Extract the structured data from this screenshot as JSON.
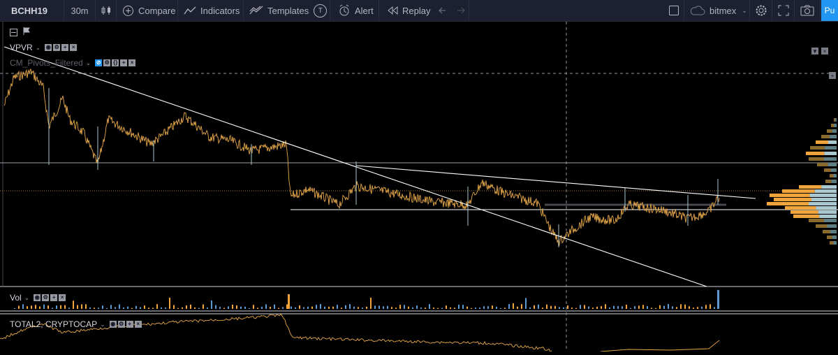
{
  "toolbar": {
    "symbol": "BCHH19",
    "interval": "30m",
    "compare": "Compare",
    "indicators": "Indicators",
    "templates": "Templates",
    "templates_badge": "T",
    "alert": "Alert",
    "replay": "Replay",
    "exchange": "bitmex",
    "publish": "Pu"
  },
  "legends": {
    "vpvr": "VPVR",
    "cm_pivots": "CM_Pivots_Filtered",
    "vol": "Vol",
    "total2": "TOTAL2, CRYPTOCAP"
  },
  "colors": {
    "toolbar_bg": "#1c2030",
    "chart_bg": "#000000",
    "price_line": "#e8a94a",
    "trendline": "#ffffff",
    "vp_orange": "#f0a43c",
    "vp_teal": "#a9c8d0",
    "vol_blue": "#5b9bd5",
    "accent": "#2196f3"
  },
  "icons": [
    "candles-icon",
    "plus-circle-icon",
    "indicators-icon",
    "templates-icon",
    "alarm-icon",
    "replay-icon",
    "undo-icon",
    "redo-icon",
    "square-icon",
    "cloud-icon",
    "gear-icon",
    "fullscreen-icon",
    "camera-icon"
  ]
}
